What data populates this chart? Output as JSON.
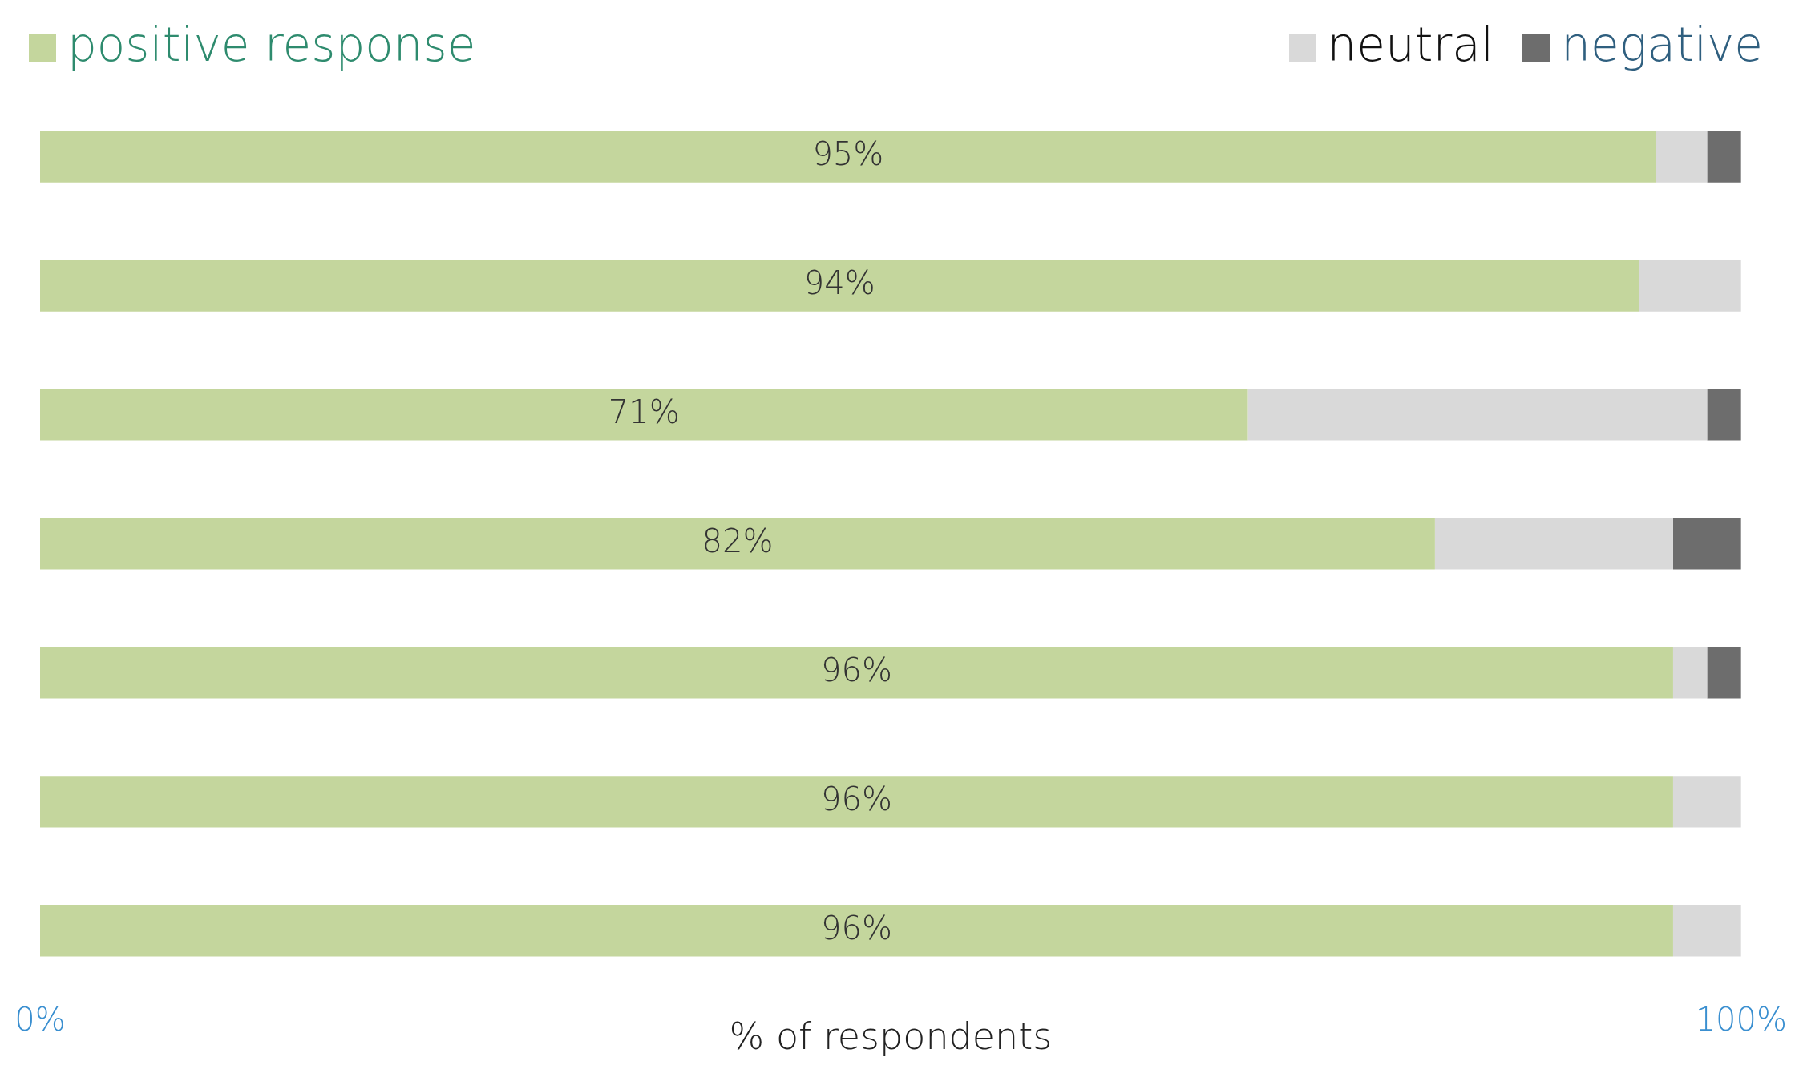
{
  "chart_data": {
    "type": "bar",
    "orientation": "horizontal",
    "stacked": true,
    "categories": [
      null,
      null,
      null,
      null,
      null,
      null,
      null
    ],
    "series": [
      {
        "name": "positive response",
        "color": "#c4d69d",
        "values": [
          95,
          94,
          71,
          82,
          96,
          96,
          96
        ],
        "value_labels": [
          "95%",
          "94%",
          "71%",
          "82%",
          "96%",
          "96%",
          "96%"
        ]
      },
      {
        "name": "neutral",
        "color": "#d9d9d9",
        "values": [
          3,
          6,
          27,
          14,
          2,
          4,
          4
        ]
      },
      {
        "name": "negative",
        "color": "#6d6d6d",
        "values": [
          2,
          0,
          2,
          4,
          2,
          0,
          0
        ]
      }
    ],
    "xlim": [
      0,
      100
    ],
    "xticks": [
      {
        "value": 0,
        "label": "0%"
      },
      {
        "value": 100,
        "label": "100%"
      }
    ],
    "xlabel": "% of respondents",
    "grid": false,
    "legend": "top"
  }
}
